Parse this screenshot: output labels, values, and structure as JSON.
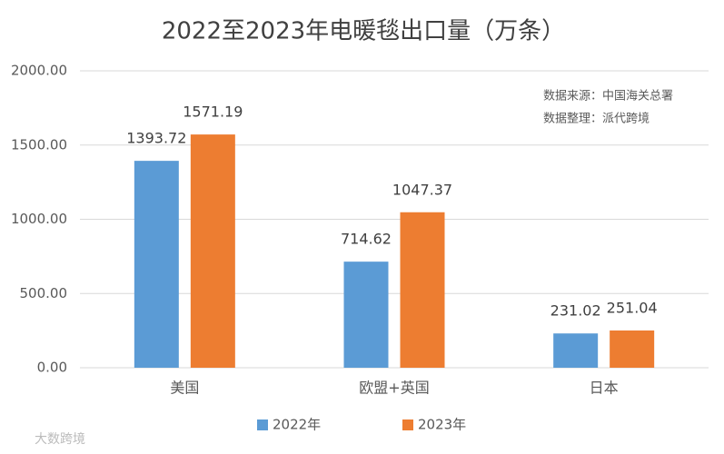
{
  "chart_data": {
    "type": "bar",
    "title": "2022至2023年电暖毯出口量（万条）",
    "annotations": [
      "数据来源：中国海关总署",
      "数据整理：派代跨境"
    ],
    "watermark": "大数跨境",
    "categories": [
      "美国",
      "欧盟+英国",
      "日本"
    ],
    "series": [
      {
        "name": "2022年",
        "color": "#5b9bd5",
        "values": [
          1393.72,
          714.62,
          231.02
        ]
      },
      {
        "name": "2023年",
        "color": "#ed7d31",
        "values": [
          1571.19,
          1047.37,
          251.04
        ]
      }
    ],
    "ylim": [
      0,
      2000
    ],
    "yticks": [
      {
        "value": 0,
        "label": "0.00"
      },
      {
        "value": 500,
        "label": "500.00"
      },
      {
        "value": 1000,
        "label": "1000.00"
      },
      {
        "value": 1500,
        "label": "1500.00"
      },
      {
        "value": 2000,
        "label": "2000.00"
      }
    ],
    "grid": true,
    "legend": "bottom"
  }
}
